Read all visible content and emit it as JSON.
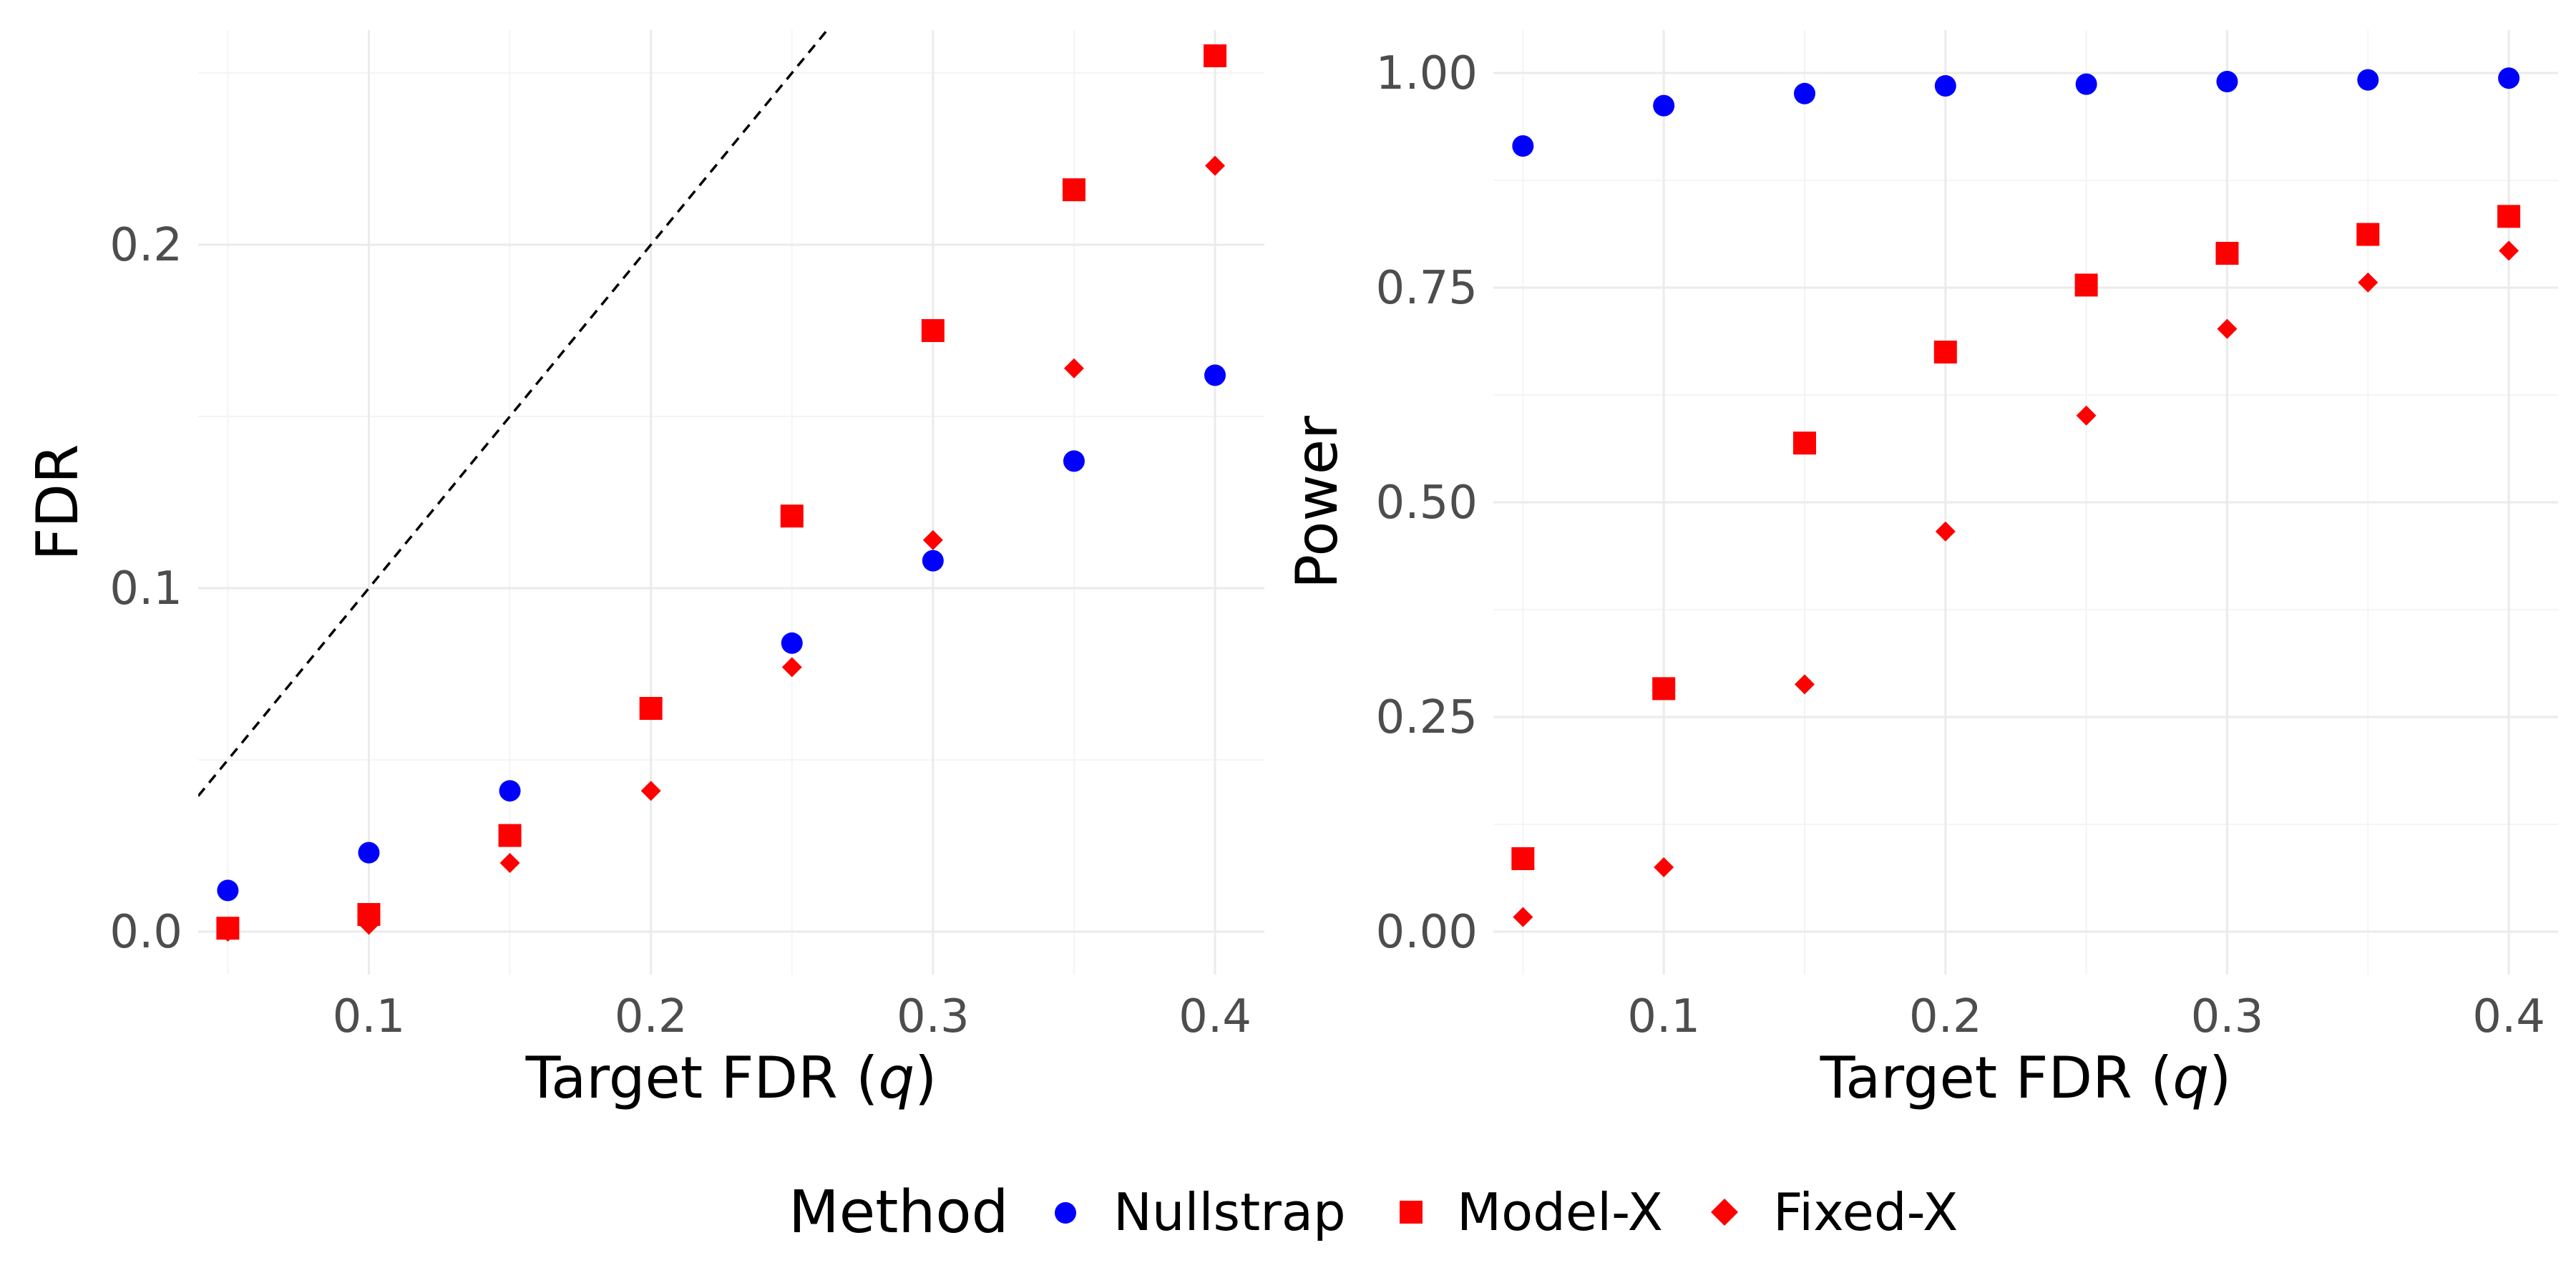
{
  "legend": {
    "title": "Method",
    "entries": [
      {
        "name": "Nullstrap",
        "color": "#0000ff",
        "shape": "circle"
      },
      {
        "name": "Model-X",
        "color": "#ff0000",
        "shape": "square"
      },
      {
        "name": "Fixed-X",
        "color": "#ff0000",
        "shape": "diamond"
      }
    ]
  },
  "chart_data": [
    {
      "type": "scatter",
      "id": "fdr",
      "xlabel_main": "Target FDR (",
      "xlabel_var": "q",
      "xlabel_end": ")",
      "ylabel": "FDR",
      "xlim": [
        0.0395,
        0.4175
      ],
      "ylim": [
        -0.0125,
        0.2625
      ],
      "xticks": [
        0.1,
        0.2,
        0.3,
        0.4
      ],
      "xtick_labels": [
        "0.1",
        "0.2",
        "0.3",
        "0.4"
      ],
      "xminor": [
        0.05,
        0.15,
        0.25,
        0.35
      ],
      "yticks": [
        0.0,
        0.1,
        0.2
      ],
      "ytick_labels": [
        "0.0",
        "0.1",
        "0.2"
      ],
      "yminor": [
        0.05,
        0.15,
        0.25
      ],
      "reference_line": {
        "slope": 1,
        "intercept": 0,
        "style": "dashed"
      },
      "x": [
        0.05,
        0.1,
        0.15,
        0.2,
        0.25,
        0.3,
        0.35,
        0.4
      ],
      "series": [
        {
          "name": "Nullstrap",
          "values": [
            0.012,
            0.023,
            0.041,
            null,
            0.084,
            0.108,
            0.137,
            0.162
          ]
        },
        {
          "name": "Model-X",
          "values": [
            0.001,
            0.005,
            0.028,
            0.065,
            0.121,
            0.175,
            0.216,
            0.255
          ]
        },
        {
          "name": "Fixed-X",
          "values": [
            0.0,
            0.002,
            0.02,
            0.041,
            0.077,
            0.114,
            0.164,
            0.223
          ]
        }
      ]
    },
    {
      "type": "scatter",
      "id": "power",
      "xlabel_main": "Target FDR (",
      "xlabel_var": "q",
      "xlabel_end": ")",
      "ylabel": "Power",
      "xlim": [
        0.0395,
        0.4175
      ],
      "ylim": [
        -0.05,
        1.05
      ],
      "xticks": [
        0.1,
        0.2,
        0.3,
        0.4
      ],
      "xtick_labels": [
        "0.1",
        "0.2",
        "0.3",
        "0.4"
      ],
      "xminor": [
        0.05,
        0.15,
        0.25,
        0.35
      ],
      "yticks": [
        0.0,
        0.25,
        0.5,
        0.75,
        1.0
      ],
      "ytick_labels": [
        "0.00",
        "0.25",
        "0.50",
        "0.75",
        "1.00"
      ],
      "yminor": [
        0.125,
        0.375,
        0.625,
        0.875
      ],
      "x": [
        0.05,
        0.1,
        0.15,
        0.2,
        0.25,
        0.3,
        0.35,
        0.4
      ],
      "series": [
        {
          "name": "Nullstrap",
          "values": [
            0.915,
            0.962,
            0.976,
            0.985,
            0.987,
            0.99,
            0.992,
            0.994
          ]
        },
        {
          "name": "Model-X",
          "values": [
            0.085,
            0.283,
            0.569,
            0.675,
            0.753,
            0.79,
            0.812,
            0.833
          ]
        },
        {
          "name": "Fixed-X",
          "values": [
            0.017,
            0.075,
            0.288,
            0.466,
            0.601,
            0.702,
            0.756,
            0.793
          ]
        }
      ]
    }
  ]
}
